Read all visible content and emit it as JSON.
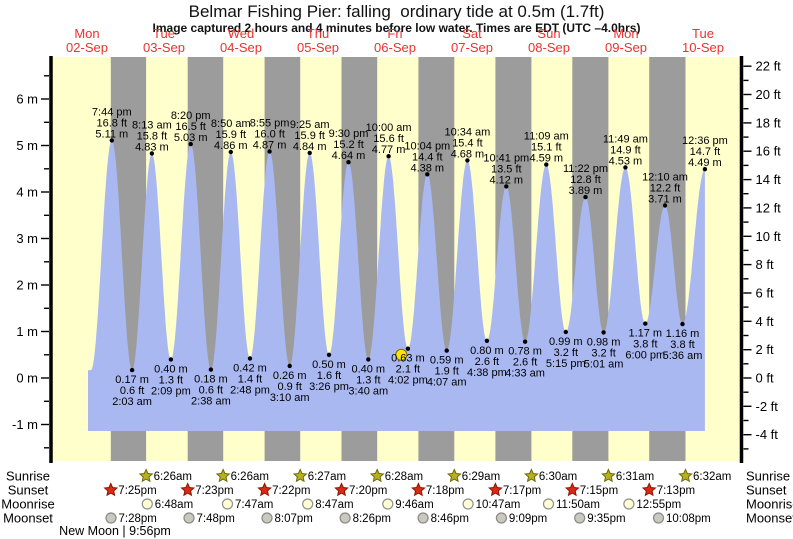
{
  "title": "Belmar Fishing Pier: falling  ordinary tide at 0.5m (1.7ft)",
  "subtitle": "Image captured 2 hours and 4 minutes before low water. Times are EDT (UTC –4.0hrs)",
  "colors": {
    "day_band": "#FFFFCC",
    "night_band": "#9C9C9C",
    "tide_fill": "#AAB8F2",
    "day_label_red": "#EE3030",
    "axis_black": "#000000",
    "sunrise_star_fill": "#B7B023",
    "sunrise_star_stroke": "#6E6A00",
    "sunset_star_fill": "#D62B18",
    "sunset_star_stroke": "#8F1500",
    "moonrise_fill": "#FFFFD6",
    "moonrise_stroke": "#909090",
    "moonset_fill": "#C9C9BE",
    "moonset_stroke": "#8A8A8A",
    "current_marker_fill": "#FFE400",
    "current_marker_stroke": "#7A6A00"
  },
  "chart_data": {
    "type": "area",
    "title": "Belmar Fishing Pier: falling  ordinary tide at 0.5m (1.7ft)",
    "subtitle": "Image captured 2 hours and 4 minutes before low water. Times are EDT (UTC –4.0hrs)",
    "x_axis": {
      "days": [
        {
          "weekday": "Mon",
          "date": "02-Sep"
        },
        {
          "weekday": "Tue",
          "date": "03-Sep"
        },
        {
          "weekday": "Wed",
          "date": "04-Sep"
        },
        {
          "weekday": "Thu",
          "date": "05-Sep"
        },
        {
          "weekday": "Fri",
          "date": "06-Sep"
        },
        {
          "weekday": "Sat",
          "date": "07-Sep"
        },
        {
          "weekday": "Sun",
          "date": "08-Sep"
        },
        {
          "weekday": "Mon",
          "date": "09-Sep"
        },
        {
          "weekday": "Tue",
          "date": "10-Sep"
        }
      ]
    },
    "y_axis_left": {
      "unit": "m",
      "min": -1,
      "max": 6,
      "label_step": 1,
      "minor_step": 0.5
    },
    "y_axis_right": {
      "unit": "ft",
      "min": -4,
      "max": 22,
      "label_step": 2,
      "minor_step": 1
    },
    "tide_events": [
      {
        "kind": "high",
        "day": 0,
        "time": "7:44 pm",
        "ft": "16.8 ft",
        "m": "5.11 m"
      },
      {
        "kind": "low",
        "day": 1,
        "time": "2:03 am",
        "ft": "0.6 ft",
        "m": "0.17 m"
      },
      {
        "kind": "high",
        "day": 1,
        "time": "8:13 am",
        "ft": "15.8 ft",
        "m": "4.83 m"
      },
      {
        "kind": "low",
        "day": 1,
        "time": "2:09 pm",
        "ft": "1.3 ft",
        "m": "0.40 m"
      },
      {
        "kind": "high",
        "day": 1,
        "time": "8:20 pm",
        "ft": "16.5 ft",
        "m": "5.03 m"
      },
      {
        "kind": "low",
        "day": 2,
        "time": "2:38 am",
        "ft": "0.6 ft",
        "m": "0.18 m"
      },
      {
        "kind": "high",
        "day": 2,
        "time": "8:50 am",
        "ft": "15.9 ft",
        "m": "4.86 m"
      },
      {
        "kind": "low",
        "day": 2,
        "time": "2:48 pm",
        "ft": "1.4 ft",
        "m": "0.42 m"
      },
      {
        "kind": "high",
        "day": 2,
        "time": "8:55 pm",
        "ft": "16.0 ft",
        "m": "4.87 m"
      },
      {
        "kind": "low",
        "day": 3,
        "time": "3:10 am",
        "ft": "0.9 ft",
        "m": "0.26 m"
      },
      {
        "kind": "high",
        "day": 3,
        "time": "9:25 am",
        "ft": "15.9 ft",
        "m": "4.84 m"
      },
      {
        "kind": "low",
        "day": 3,
        "time": "3:26 pm",
        "ft": "1.6 ft",
        "m": "0.50 m"
      },
      {
        "kind": "high",
        "day": 3,
        "time": "9:30 pm",
        "ft": "15.2 ft",
        "m": "4.64 m"
      },
      {
        "kind": "low",
        "day": 4,
        "time": "3:40 am",
        "ft": "1.3 ft",
        "m": "0.40 m"
      },
      {
        "kind": "high",
        "day": 4,
        "time": "10:00 am",
        "ft": "15.6 ft",
        "m": "4.77 m"
      },
      {
        "kind": "low",
        "day": 4,
        "time": "4:02 pm",
        "ft": "2.1 ft",
        "m": "0.63 m"
      },
      {
        "kind": "high",
        "day": 4,
        "time": "10:04 pm",
        "ft": "14.4 ft",
        "m": "4.38 m"
      },
      {
        "kind": "low",
        "day": 5,
        "time": "4:07 am",
        "ft": "1.9 ft",
        "m": "0.59 m"
      },
      {
        "kind": "high",
        "day": 5,
        "time": "10:34 am",
        "ft": "15.4 ft",
        "m": "4.68 m"
      },
      {
        "kind": "low",
        "day": 5,
        "time": "4:38 pm",
        "ft": "2.6 ft",
        "m": "0.80 m"
      },
      {
        "kind": "high",
        "day": 5,
        "time": "10:41 pm",
        "ft": "13.5 ft",
        "m": "4.12 m"
      },
      {
        "kind": "low",
        "day": 6,
        "time": "4:33 am",
        "ft": "2.6 ft",
        "m": "0.78 m"
      },
      {
        "kind": "high",
        "day": 6,
        "time": "11:09 am",
        "ft": "15.1 ft",
        "m": "4.59 m"
      },
      {
        "kind": "low",
        "day": 6,
        "time": "5:15 pm",
        "ft": "3.2 ft",
        "m": "0.99 m"
      },
      {
        "kind": "high",
        "day": 6,
        "time": "11:22 pm",
        "ft": "12.8 ft",
        "m": "3.89 m"
      },
      {
        "kind": "low",
        "day": 7,
        "time": "5:01 am",
        "ft": "3.2 ft",
        "m": "0.98 m"
      },
      {
        "kind": "high",
        "day": 7,
        "time": "11:49 am",
        "ft": "14.9 ft",
        "m": "4.53 m"
      },
      {
        "kind": "low",
        "day": 7,
        "time": "6:00 pm",
        "ft": "3.8 ft",
        "m": "1.17 m"
      },
      {
        "kind": "high",
        "day": 8,
        "time": "12:10 am",
        "ft": "12.2 ft",
        "m": "3.71 m"
      },
      {
        "kind": "low",
        "day": 8,
        "time": "5:36 am",
        "ft": "3.8 ft",
        "m": "1.16 m"
      },
      {
        "kind": "high",
        "day": 8,
        "time": "12:36 pm",
        "ft": "14.7 ft",
        "m": "4.49 m"
      }
    ],
    "current_marker": {
      "day": 4,
      "time": "1:58 pm",
      "height_m": 0.5,
      "note": "captured 2 hours and 4 minutes before low water at 0.5m (1.7ft)"
    }
  },
  "astro": {
    "rows": [
      {
        "label": "Sunrise",
        "icon": "sunrise-star-icon",
        "entries": [
          {
            "day": 1,
            "time": "6:26am"
          },
          {
            "day": 2,
            "time": "6:26am"
          },
          {
            "day": 3,
            "time": "6:27am"
          },
          {
            "day": 4,
            "time": "6:28am"
          },
          {
            "day": 5,
            "time": "6:29am"
          },
          {
            "day": 6,
            "time": "6:30am"
          },
          {
            "day": 7,
            "time": "6:31am"
          },
          {
            "day": 8,
            "time": "6:32am"
          }
        ]
      },
      {
        "label": "Sunset",
        "icon": "sunset-star-icon",
        "entries": [
          {
            "day": 0,
            "time": "7:25pm"
          },
          {
            "day": 1,
            "time": "7:23pm"
          },
          {
            "day": 2,
            "time": "7:22pm"
          },
          {
            "day": 3,
            "time": "7:20pm"
          },
          {
            "day": 4,
            "time": "7:18pm"
          },
          {
            "day": 5,
            "time": "7:17pm"
          },
          {
            "day": 6,
            "time": "7:15pm"
          },
          {
            "day": 7,
            "time": "7:13pm"
          }
        ]
      },
      {
        "label": "Moonrise",
        "icon": "moonrise-icon",
        "entries": [
          {
            "day": 1,
            "time": "6:48am"
          },
          {
            "day": 2,
            "time": "7:47am"
          },
          {
            "day": 3,
            "time": "8:47am"
          },
          {
            "day": 4,
            "time": "9:46am"
          },
          {
            "day": 5,
            "time": "10:47am"
          },
          {
            "day": 6,
            "time": "11:50am"
          },
          {
            "day": 7,
            "time": "12:55pm"
          }
        ]
      },
      {
        "label": "Moonset",
        "icon": "moonset-icon",
        "entries": [
          {
            "day": 0,
            "time": "7:28pm"
          },
          {
            "day": 1,
            "time": "7:48pm"
          },
          {
            "day": 2,
            "time": "8:07pm"
          },
          {
            "day": 3,
            "time": "8:26pm"
          },
          {
            "day": 4,
            "time": "8:46pm"
          },
          {
            "day": 5,
            "time": "9:09pm"
          },
          {
            "day": 6,
            "time": "9:35pm"
          },
          {
            "day": 7,
            "time": "10:08pm"
          }
        ]
      }
    ],
    "footnote": "New Moon | 9:56pm"
  }
}
